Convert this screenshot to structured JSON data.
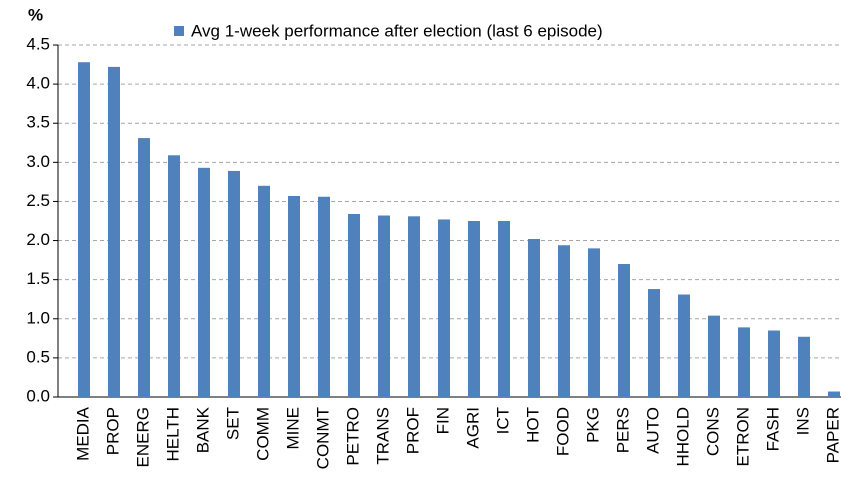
{
  "chart_data": {
    "type": "bar",
    "y_unit": "%",
    "categories": [
      "MEDIA",
      "PROP",
      "ENERG",
      "HELTH",
      "BANK",
      "SET",
      "COMM",
      "MINE",
      "CONMT",
      "PETRO",
      "TRANS",
      "PROF",
      "FIN",
      "AGRI",
      "ICT",
      "HOT",
      "FOOD",
      "PKG",
      "PERS",
      "AUTO",
      "HHOLD",
      "CONS",
      "ETRON",
      "FASH",
      "INS",
      "PAPER"
    ],
    "series": [
      {
        "name": "Avg 1-week performance after election (last 6 episode)",
        "color": "#4f81bd",
        "values": [
          4.28,
          4.22,
          3.31,
          3.09,
          2.93,
          2.89,
          2.7,
          2.57,
          2.56,
          2.34,
          2.32,
          2.31,
          2.27,
          2.25,
          2.25,
          2.02,
          1.94,
          1.9,
          1.7,
          1.38,
          1.31,
          1.04,
          0.89,
          0.85,
          0.77,
          0.07
        ]
      }
    ],
    "ylim": [
      0,
      4.5
    ],
    "yticks": [
      {
        "value": 0,
        "label": "0.0"
      },
      0.5,
      {
        "value": 1,
        "label": "1.0"
      },
      1.5,
      {
        "value": 2,
        "label": "2.0"
      },
      2.5,
      {
        "value": 3,
        "label": "3.0"
      },
      3.5,
      {
        "value": 4,
        "label": "4.0"
      },
      4.5
    ],
    "grid": true
  }
}
